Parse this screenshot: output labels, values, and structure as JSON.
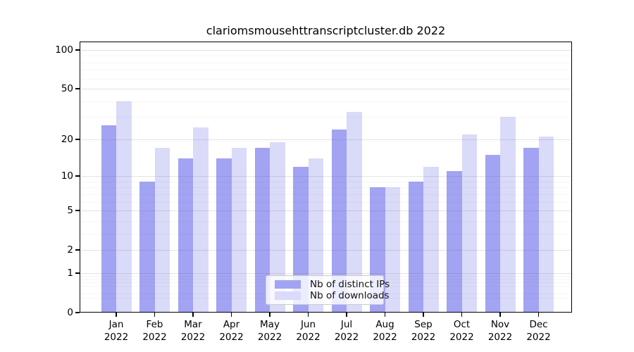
{
  "chart_data": {
    "type": "bar",
    "title": "clariomsmousehttranscriptcluster.db 2022",
    "y_scale": "log10(value+1)",
    "y_ticks": [
      100,
      50,
      20,
      10,
      5,
      2,
      1,
      0
    ],
    "y_major_gridlines": [
      1,
      2,
      5,
      10,
      20,
      50,
      100
    ],
    "y_minor_gridlines": [
      0.3,
      0.4,
      0.6,
      0.7,
      0.8,
      0.9,
      3,
      4,
      6,
      7,
      8,
      9,
      30,
      40,
      60,
      70,
      80,
      90
    ],
    "ylim": [
      0,
      116
    ],
    "grid": true,
    "legend_position": "lower center",
    "months": [
      {
        "month": "Jan",
        "year": "2022"
      },
      {
        "month": "Feb",
        "year": "2022"
      },
      {
        "month": "Mar",
        "year": "2022"
      },
      {
        "month": "Apr",
        "year": "2022"
      },
      {
        "month": "May",
        "year": "2022"
      },
      {
        "month": "Jun",
        "year": "2022"
      },
      {
        "month": "Jul",
        "year": "2022"
      },
      {
        "month": "Aug",
        "year": "2022"
      },
      {
        "month": "Sep",
        "year": "2022"
      },
      {
        "month": "Oct",
        "year": "2022"
      },
      {
        "month": "Nov",
        "year": "2022"
      },
      {
        "month": "Dec",
        "year": "2022"
      }
    ],
    "series": [
      {
        "name": "Nb of distinct IPs",
        "color": "#a2a3f2",
        "values": [
          26,
          9,
          14,
          14,
          17,
          12,
          24,
          8,
          9,
          11,
          15,
          17
        ]
      },
      {
        "name": "Nb of downloads",
        "color": "#dadaf9",
        "values": [
          40,
          17,
          25,
          17,
          19,
          14,
          33,
          8,
          12,
          22,
          30,
          21
        ]
      }
    ]
  },
  "colors": {
    "background": "#ffffff",
    "axis": "#000000",
    "text": "#000000",
    "major_grid": "#dadada",
    "minor_grid": "#f0f0f0",
    "legend_border": "#cccccc",
    "legend_background": "#ffffff"
  }
}
